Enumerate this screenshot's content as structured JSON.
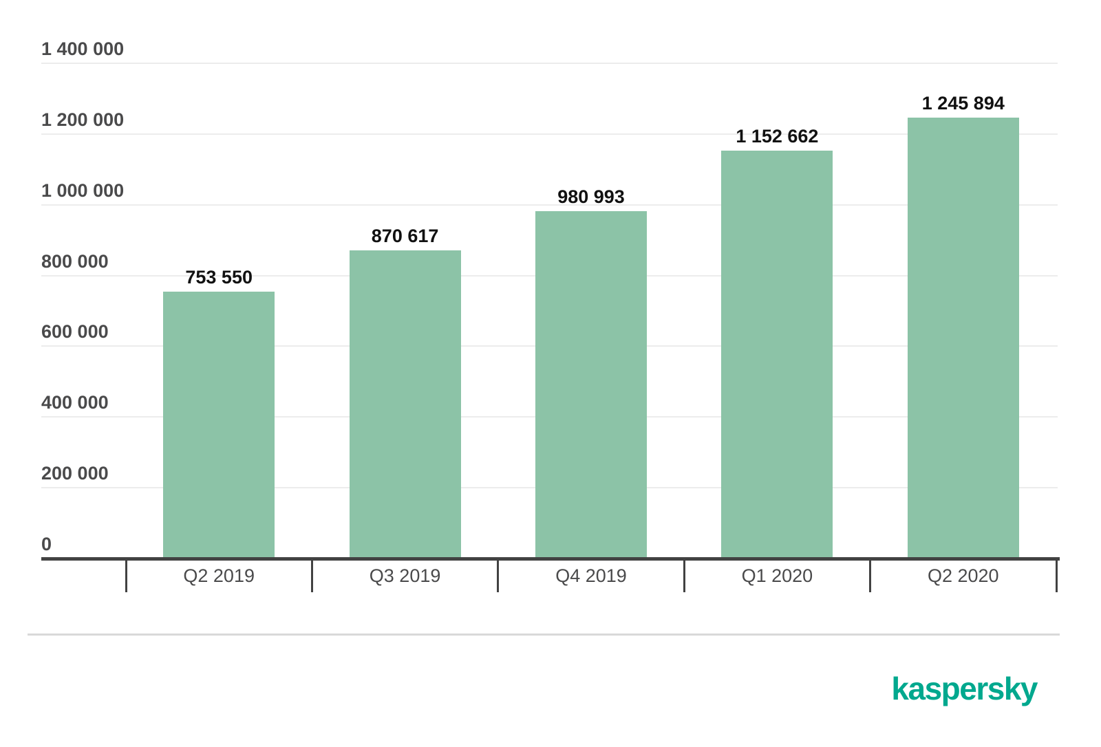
{
  "chart_data": {
    "type": "bar",
    "categories": [
      "Q2 2019",
      "Q3 2019",
      "Q4 2019",
      "Q1 2020",
      "Q2 2020"
    ],
    "values": [
      753550,
      870617,
      980993,
      1152662,
      1245894
    ],
    "value_labels": [
      "753 550",
      "870 617",
      "980 993",
      "1 152 662",
      "1 245 894"
    ],
    "title": "",
    "xlabel": "",
    "ylabel": "",
    "ylim": [
      0,
      1400000
    ],
    "ytick_interval": 200000,
    "ytick_labels": [
      "0",
      "200 000",
      "400 000",
      "600 000",
      "800 000",
      "1 000 000",
      "1 200 000",
      "1 400 000"
    ],
    "grid": true,
    "legend_position": "none",
    "bar_color": "#8cc3a7"
  },
  "colors": {
    "background": "#ffffff",
    "bar": "#8cc3a7",
    "gridline": "#ececec",
    "axis": "#424242",
    "y_label": "#4a4a4b",
    "x_label": "#4a4a4b",
    "value_label": "#111111",
    "separator": "#d9d9d9"
  },
  "branding": {
    "logo_text": "kaspersky",
    "logo_color": "#00a88e"
  }
}
